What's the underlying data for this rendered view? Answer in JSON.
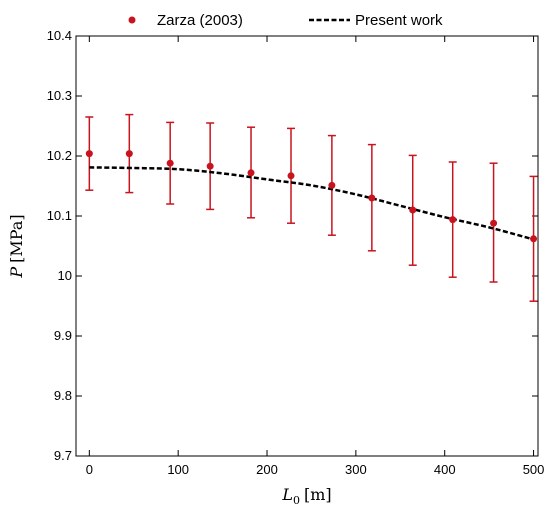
{
  "chart_data": {
    "type": "scatter",
    "x_unit_label": {
      "symbol": "L",
      "subscript": "0",
      "unit": "[m]"
    },
    "y_unit_label": {
      "symbol": "P",
      "unit": "[MPa]"
    },
    "xlim": [
      -15,
      505
    ],
    "ylim": [
      9.7,
      10.4
    ],
    "x_ticks": [
      0,
      100,
      200,
      300,
      400,
      500
    ],
    "x_tick_labels": [
      "0",
      "100",
      "200",
      "300",
      "400",
      "500"
    ],
    "y_ticks": [
      9.7,
      9.8,
      9.9,
      10.0,
      10.1,
      10.2,
      10.3,
      10.4
    ],
    "y_tick_labels": [
      "9.7",
      "9.8",
      "9.9",
      "10",
      "10.1",
      "10.2",
      "10.3",
      "10.4"
    ],
    "grid": false,
    "legend_position": "top",
    "series": [
      {
        "name": "Zarza (2003)",
        "kind": "scatter-errorbar",
        "color": "#c8141e",
        "x": [
          0,
          45,
          91,
          136,
          182,
          227,
          273,
          318,
          364,
          409,
          455,
          500
        ],
        "y": [
          10.204,
          10.204,
          10.188,
          10.183,
          10.172,
          10.167,
          10.151,
          10.13,
          10.11,
          10.094,
          10.088,
          10.062
        ],
        "y_err_low": [
          10.143,
          10.139,
          10.12,
          10.111,
          10.097,
          10.088,
          10.068,
          10.042,
          10.018,
          9.998,
          9.99,
          9.958
        ],
        "y_err_high": [
          10.265,
          10.269,
          10.256,
          10.255,
          10.248,
          10.246,
          10.234,
          10.219,
          10.201,
          10.19,
          10.188,
          10.166
        ]
      },
      {
        "name": "Present work",
        "kind": "line-dashed",
        "color": "#000000",
        "x": [
          0,
          50,
          100,
          150,
          200,
          250,
          300,
          350,
          400,
          450,
          500
        ],
        "y": [
          10.181,
          10.18,
          10.178,
          10.171,
          10.161,
          10.151,
          10.136,
          10.117,
          10.098,
          10.081,
          10.061
        ]
      }
    ]
  }
}
